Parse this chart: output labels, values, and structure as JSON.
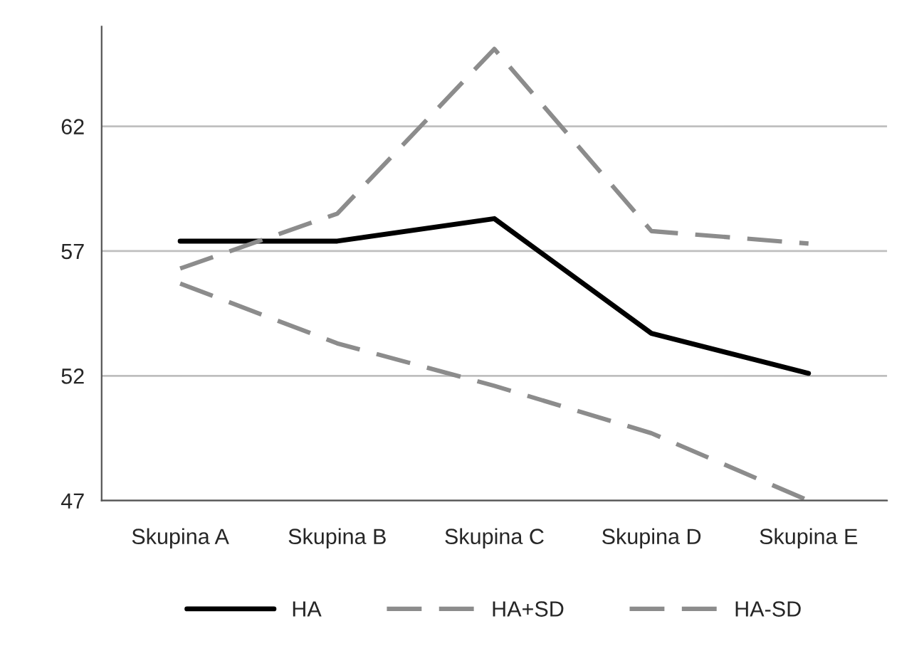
{
  "chart_data": {
    "type": "line",
    "categories": [
      "Skupina A",
      "Skupina B",
      "Skupina C",
      "Skupina D",
      "Skupina E"
    ],
    "series": [
      {
        "name": "HA",
        "color": "#000000",
        "line_style": "solid",
        "values": [
          57.4,
          57.4,
          58.3,
          53.7,
          52.1
        ]
      },
      {
        "name": "HA+SD",
        "color": "#8c8c8c",
        "line_style": "dashed",
        "values": [
          56.3,
          58.5,
          65.1,
          57.8,
          57.3
        ]
      },
      {
        "name": "HA-SD",
        "color": "#8c8c8c",
        "line_style": "dashed",
        "values": [
          55.7,
          53.3,
          51.6,
          49.7,
          47.0
        ]
      }
    ],
    "ylim": [
      47,
      66
    ],
    "yticks": [
      47,
      52,
      57,
      62
    ],
    "grid": "y",
    "legend": "bottom",
    "marker": "none"
  }
}
